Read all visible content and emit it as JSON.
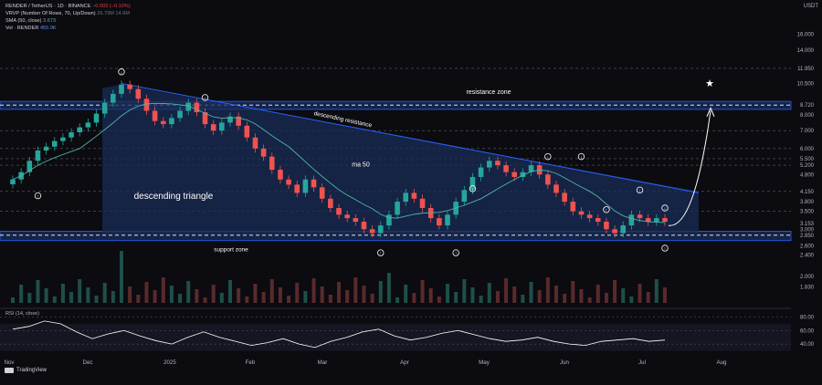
{
  "header": {
    "symbol": "RENDER / TetherUS · 1D · BINANCE",
    "change": "−0.003 (−0.10%)",
    "vrvp": "VRVP (Number Of Rows, 70, Up/Down)",
    "vrvp_vals": "26.79M   14.6M",
    "sma": "SMA (50, close)",
    "sma_val": "3.673",
    "vol": "Vol · RENDER",
    "vol_val": "455.9K",
    "currency": "USDT"
  },
  "rsi_label": "RSI (14, close)",
  "brand": "TradingView",
  "colors": {
    "bg": "#0b0b10",
    "up": "#26a69a",
    "down": "#ef5350",
    "wedge": "#1b2a4a",
    "line": "#2962ff",
    "sma": "#4db6ac",
    "rsi": "#ffffff"
  },
  "chart_data": {
    "type": "line",
    "title": "RENDER / TetherUS · 1D · BINANCE",
    "y_scale": "log",
    "y_ticks": [
      "16.000",
      "14.000",
      "11.950",
      "10.500",
      "8.720",
      "8.000",
      "7.000",
      "6.000",
      "5.500",
      "5.200",
      "4.800",
      "4.150",
      "3.800",
      "3.500",
      "3.153",
      "3.000",
      "2.850",
      "2.600",
      "2.400",
      "2.000",
      "1.830"
    ],
    "price_levels": {
      "resistance_high": 8.72,
      "resistance_low": 8.6,
      "support": 2.85,
      "line_11950": 11.95
    },
    "x_ticks": [
      "Nov",
      "Dec",
      "2025",
      "Feb",
      "Mar",
      "Apr",
      "May",
      "Jun",
      "Jul",
      "Aug"
    ],
    "annotations": [
      "resistance zone",
      "descending resistance",
      "ma 50",
      "descending triangle",
      "support zone"
    ],
    "closes": [
      4.6,
      4.9,
      5.4,
      5.9,
      6.1,
      6.4,
      6.6,
      6.9,
      7.2,
      7.5,
      8.1,
      8.9,
      9.6,
      10.4,
      10.0,
      9.2,
      8.3,
      7.6,
      7.4,
      7.8,
      8.3,
      8.9,
      8.2,
      7.4,
      7.0,
      7.5,
      7.9,
      7.3,
      6.6,
      6.0,
      5.6,
      5.0,
      4.6,
      4.4,
      4.1,
      4.6,
      4.3,
      3.9,
      3.6,
      3.4,
      3.3,
      3.2,
      3.0,
      2.9,
      3.1,
      3.4,
      3.8,
      4.1,
      3.9,
      3.6,
      3.3,
      3.1,
      3.4,
      3.8,
      4.2,
      4.7,
      5.1,
      5.4,
      5.2,
      4.9,
      4.7,
      4.9,
      5.2,
      4.8,
      4.4,
      4.1,
      3.8,
      3.5,
      3.4,
      3.3,
      3.2,
      3.0,
      2.9,
      3.1,
      3.4,
      3.3,
      3.2,
      3.3,
      3.2
    ],
    "rsi_ticks": [
      "80.00",
      "60.00",
      "40.00"
    ],
    "rsi_values": [
      62,
      66,
      74,
      70,
      58,
      48,
      55,
      60,
      52,
      45,
      40,
      50,
      58,
      50,
      44,
      38,
      42,
      48,
      40,
      35,
      44,
      50,
      58,
      62,
      52,
      46,
      50,
      56,
      60,
      54,
      48,
      44,
      46,
      50,
      44,
      40,
      38,
      44,
      46,
      48,
      44,
      46
    ]
  }
}
